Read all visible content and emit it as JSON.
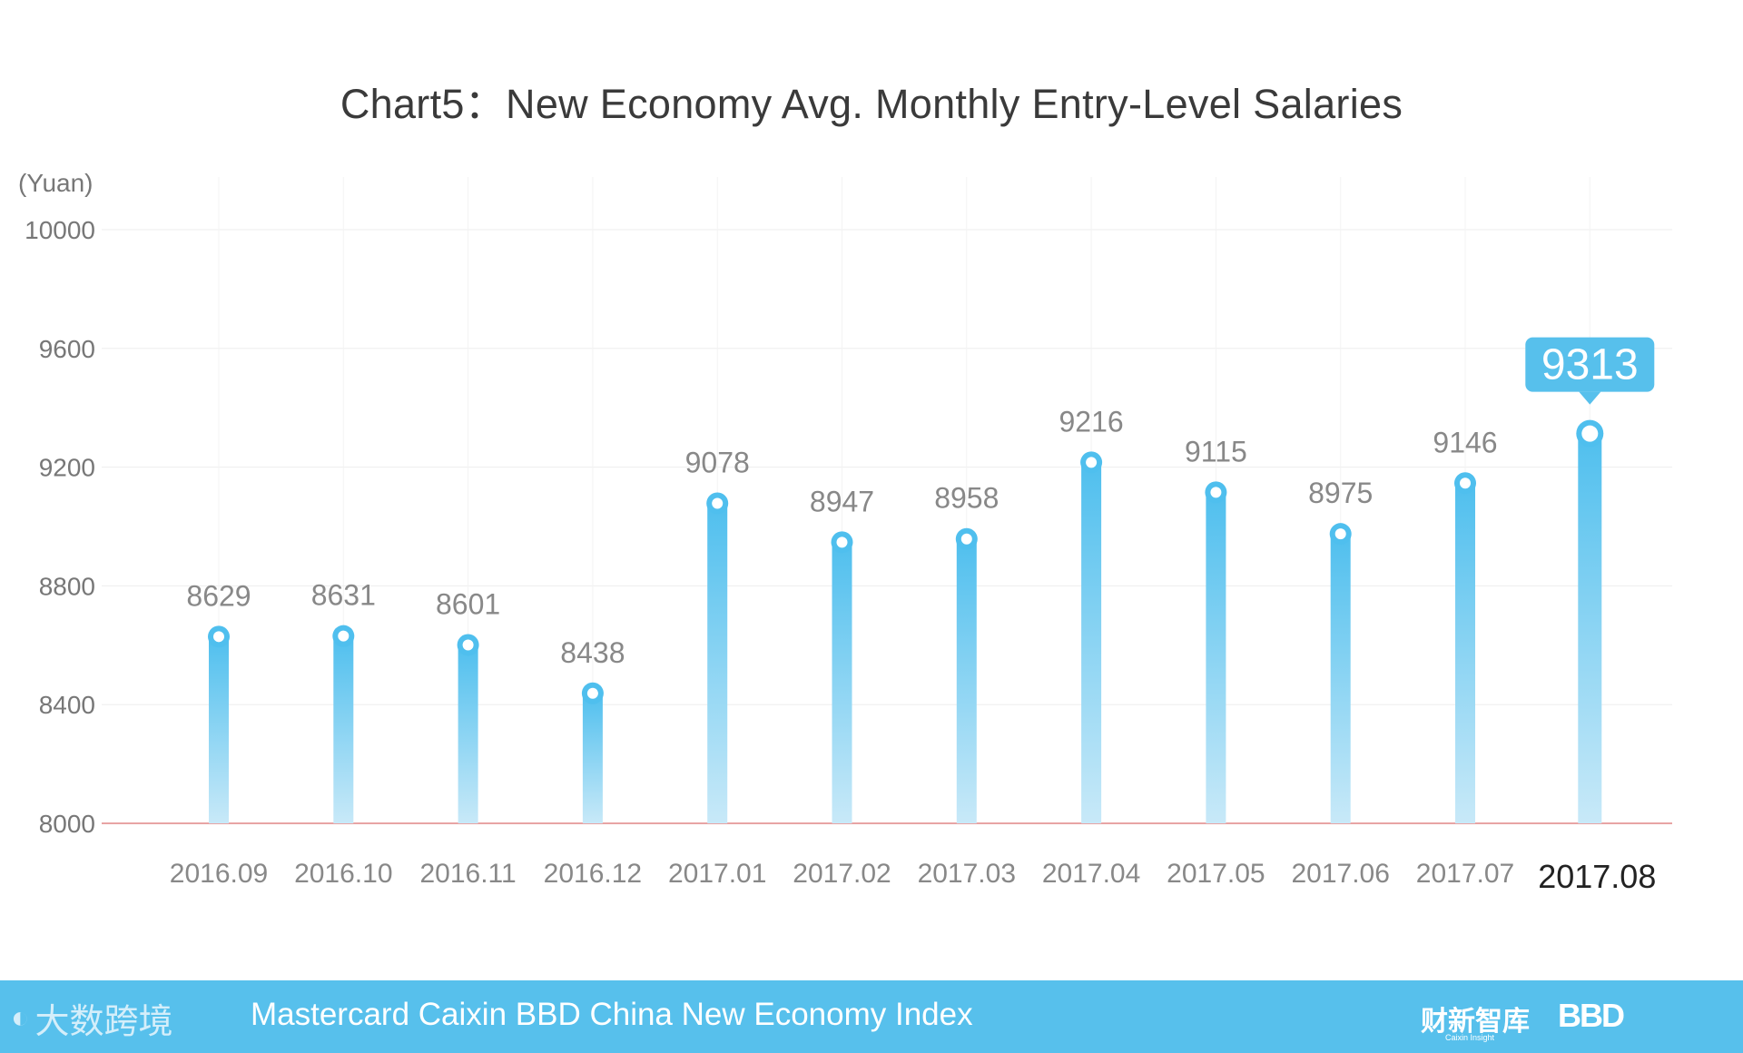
{
  "chart_data": {
    "type": "bar",
    "title": "Chart5：New Economy Avg. Monthly Entry-Level Salaries",
    "ylabel": "(Yuan)",
    "xlabel": "",
    "ylim": [
      8000,
      10000
    ],
    "yticks": [
      8000,
      8400,
      8800,
      9200,
      9600,
      10000
    ],
    "categories": [
      "2016.09",
      "2016.10",
      "2016.11",
      "2016.12",
      "2017.01",
      "2017.02",
      "2017.03",
      "2017.04",
      "2017.05",
      "2017.06",
      "2017.07",
      "2017.08"
    ],
    "values": [
      8629,
      8631,
      8601,
      8438,
      9078,
      8947,
      8958,
      9216,
      9115,
      8975,
      9146,
      9313
    ],
    "highlight_index": 11,
    "grid": true,
    "colors": {
      "bar_top": "#4fbfee",
      "bar_bottom": "#c8e9f8",
      "highlight_label_bg": "#57c0ec",
      "baseline": "#e8a4a4",
      "grid": "#eeeeee"
    }
  },
  "footer": {
    "logo_text": "大数跨境",
    "title": "Mastercard Caixin BBD China New Economy Index",
    "brand_cn": "财新智库",
    "brand_cn_sub": "Caixin Insight",
    "brand_bbd": "BBD"
  }
}
